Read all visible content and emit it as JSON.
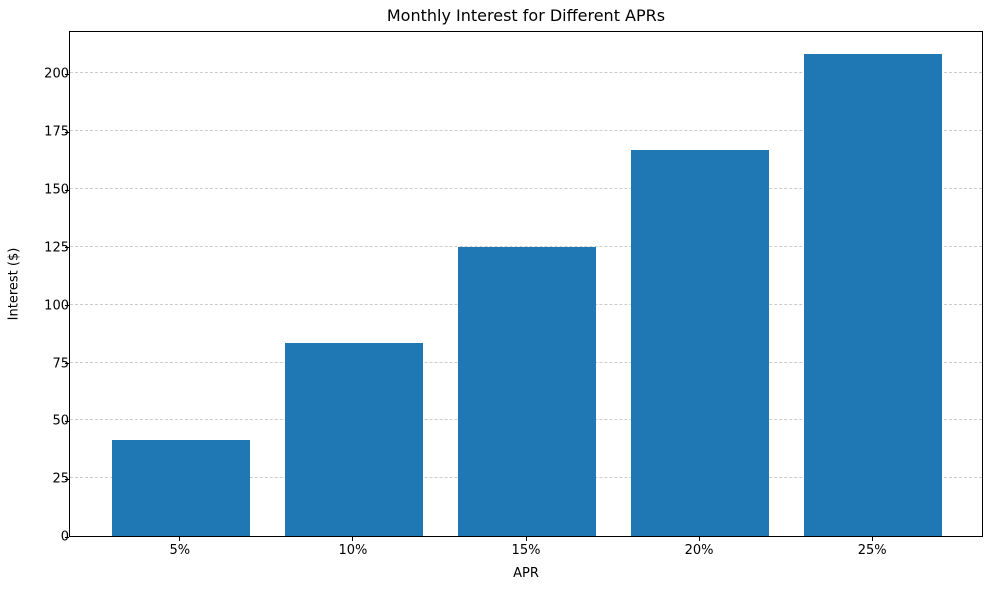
{
  "chart_data": {
    "type": "bar",
    "title": "Monthly Interest for Different APRs",
    "xlabel": "APR",
    "ylabel": "Interest ($)",
    "categories": [
      "5%",
      "10%",
      "15%",
      "20%",
      "25%"
    ],
    "values": [
      41.67,
      83.33,
      125.0,
      166.67,
      208.33
    ],
    "yticks": [
      0,
      25,
      50,
      75,
      100,
      125,
      150,
      175,
      200
    ],
    "ylim": [
      0,
      218.75
    ],
    "bar_color": "#1f77b4",
    "grid": "horizontal-dashed",
    "grid_color": "#cccccc",
    "spine_color": "#000000",
    "background_color": "#ffffff",
    "legend_position": "none",
    "bar_width_fraction": 0.8
  }
}
